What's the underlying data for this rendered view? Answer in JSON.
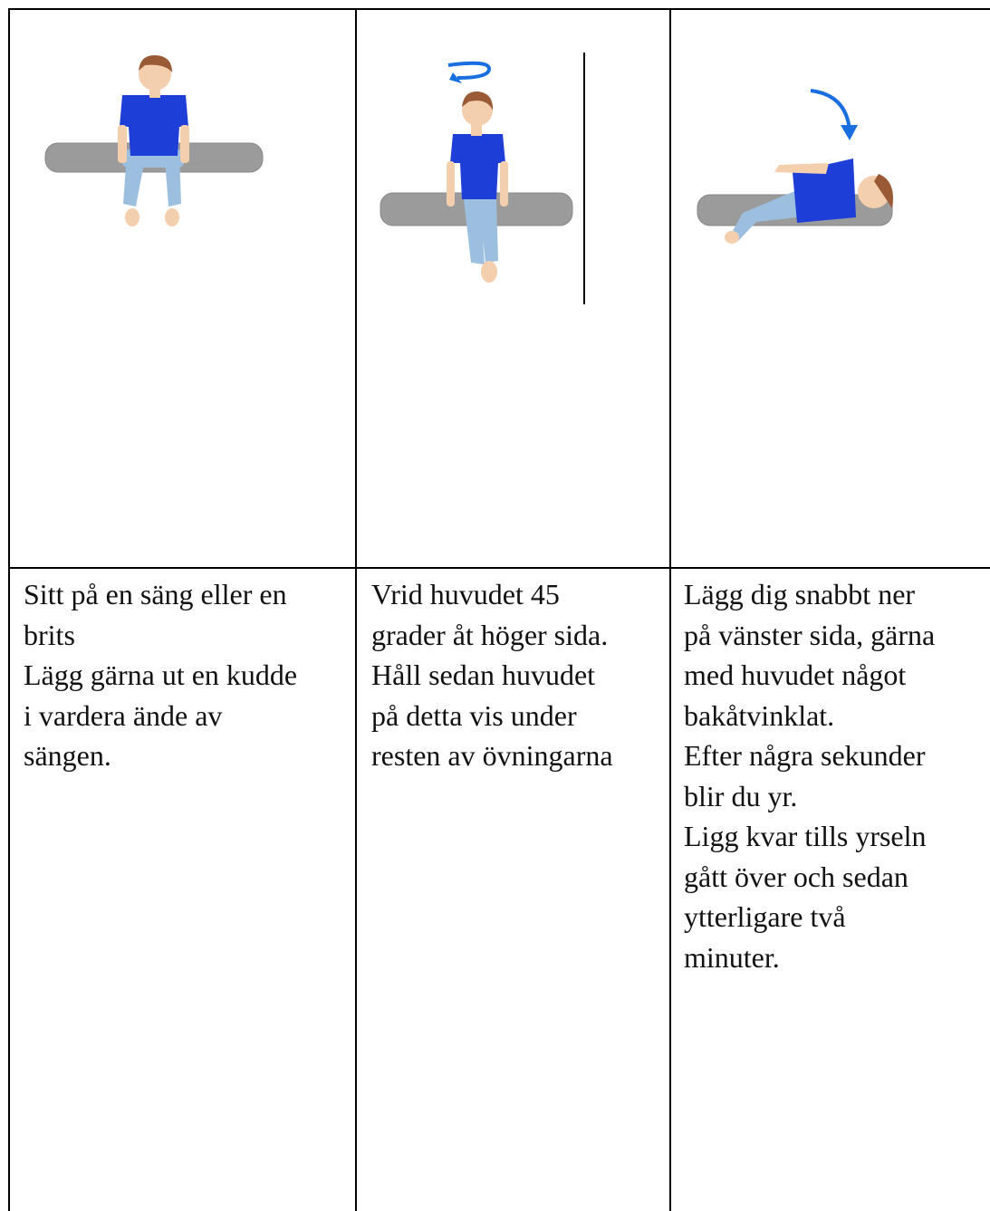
{
  "table": {
    "rows": [
      {
        "cells": [
          {
            "lines": [
              "Sitt på en säng eller en",
              "brits",
              "Lägg gärna ut en kudde",
              "i vardera ände av",
              "sängen."
            ]
          },
          {
            "lines": [
              "Vrid huvudet 45",
              "grader åt höger sida.",
              "Håll sedan huvudet",
              "på detta vis under",
              "resten av övningarna"
            ]
          },
          {
            "lines": [
              "Lägg dig snabbt ner",
              "på vänster sida, gärna",
              "med huvudet något",
              "bakåtvinklat.",
              "Efter några sekunder",
              "blir du yr.",
              "Ligg kvar tills yrseln",
              "gått över och sedan",
              "ytterligare två",
              "minuter."
            ]
          }
        ]
      }
    ]
  }
}
